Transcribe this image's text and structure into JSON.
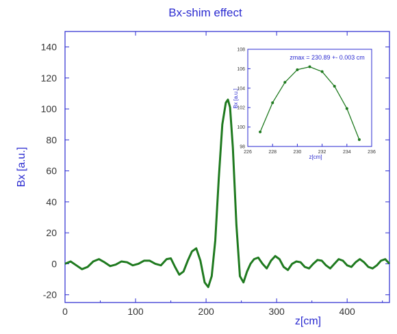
{
  "chart_data": [
    {
      "type": "line",
      "title": "Bx-shim effect",
      "xlabel": "z[cm]",
      "ylabel": "Bx [a.u.]",
      "xlim": [
        0,
        460
      ],
      "ylim": [
        -25,
        150
      ],
      "xticks": [
        0,
        100,
        200,
        300,
        400
      ],
      "yticks": [
        -20,
        0,
        20,
        40,
        60,
        80,
        100,
        120,
        140
      ],
      "grid": false,
      "colors": {
        "axis": "#2a2ad0",
        "line": "#1f7a1f",
        "text": "#2a2ad0"
      },
      "series": [
        {
          "x": [
            0,
            8,
            16,
            24,
            32,
            40,
            48,
            56,
            64,
            72,
            80,
            88,
            96,
            104,
            112,
            120,
            128,
            136,
            144,
            150,
            156,
            162,
            168,
            174,
            180,
            186,
            192,
            198,
            203,
            208,
            213,
            218,
            223,
            228,
            231,
            234,
            238,
            243,
            248,
            253,
            258,
            263,
            268,
            274,
            280,
            286,
            292,
            298,
            304,
            310,
            316,
            322,
            328,
            334,
            340,
            346,
            352,
            358,
            364,
            370,
            376,
            382,
            388,
            394,
            400,
            406,
            412,
            418,
            424,
            430,
            436,
            442,
            448,
            454,
            460
          ],
          "values": [
            0,
            1.5,
            -1,
            -3.5,
            -2,
            1.5,
            3,
            1,
            -1.5,
            -0.5,
            1.5,
            1,
            -1,
            0,
            2,
            2,
            0,
            -1,
            3,
            3.5,
            -2,
            -7,
            -5,
            2,
            8,
            10,
            2,
            -12,
            -15,
            -8,
            15,
            55,
            90,
            104,
            106,
            101,
            75,
            25,
            -8,
            -12,
            -5,
            0,
            3,
            4,
            0,
            -3,
            2,
            5,
            3,
            -2,
            -4,
            0,
            1.5,
            1,
            -2,
            -3,
            0,
            2.5,
            2,
            -1,
            -3,
            0,
            3,
            2,
            -1,
            -2,
            1,
            3,
            1,
            -2,
            -3,
            -1,
            2,
            3,
            0
          ]
        }
      ]
    },
    {
      "type": "line",
      "xlabel": "z[cm]",
      "ylabel": "Bx [a.u.]",
      "xlim": [
        226,
        236
      ],
      "ylim": [
        98,
        108
      ],
      "xticks": [
        226,
        228,
        230,
        232,
        234,
        236
      ],
      "yticks": [
        98,
        100,
        102,
        104,
        106,
        108
      ],
      "annotation": "zmax = 230.89 +- 0.003 cm",
      "series": [
        {
          "x": [
            227,
            228,
            229,
            230,
            231,
            232,
            233,
            234,
            235
          ],
          "values": [
            99.5,
            102.5,
            104.6,
            105.9,
            106.2,
            105.7,
            104.2,
            101.9,
            98.7
          ]
        }
      ]
    }
  ]
}
